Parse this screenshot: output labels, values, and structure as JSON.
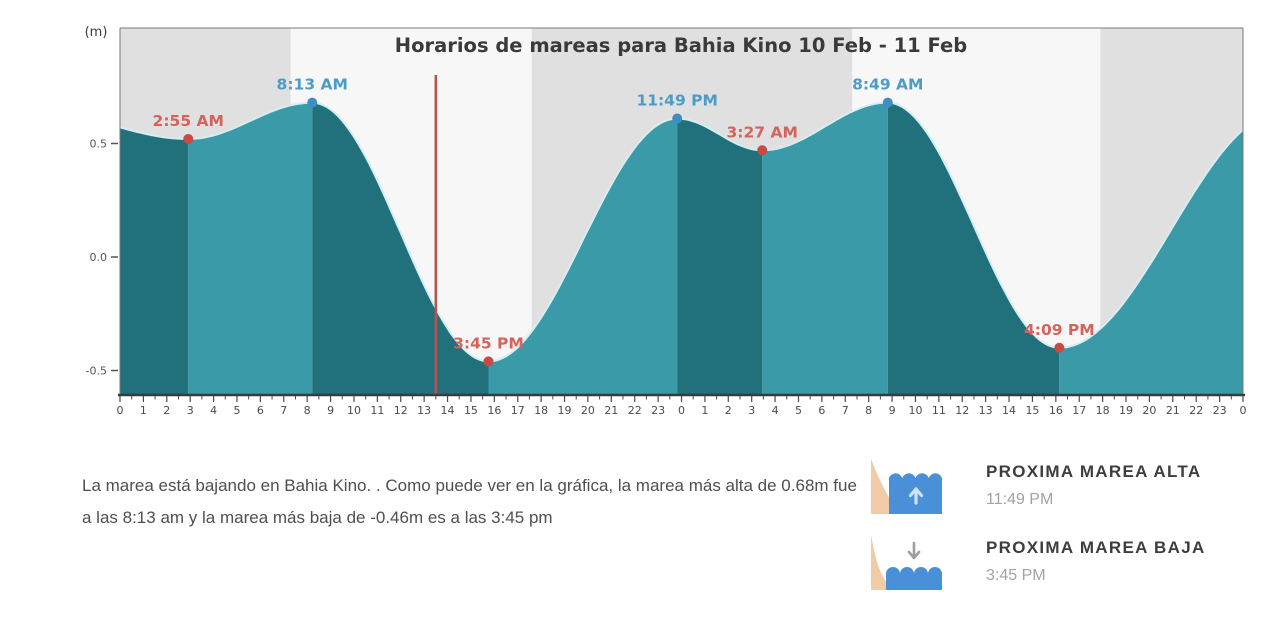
{
  "chart_data": {
    "type": "area",
    "title": "Horarios de mareas para Bahia Kino 10 Feb - 11 Feb",
    "unit_label": "(m)",
    "xlabel": "",
    "ylabel": "(m)",
    "ylim": [
      -0.6,
      1.0
    ],
    "x_hours_span": 48,
    "grid": false,
    "legend_position": "none",
    "y_ticks": [
      {
        "label": "0.5",
        "value": 0.5
      },
      {
        "label": "0.0",
        "value": 0.0
      },
      {
        "label": "-0.5",
        "value": -0.5
      }
    ],
    "x_tick_labels": [
      "0",
      "1",
      "2",
      "3",
      "4",
      "5",
      "6",
      "7",
      "8",
      "9",
      "10",
      "11",
      "12",
      "13",
      "14",
      "15",
      "16",
      "17",
      "18",
      "19",
      "20",
      "21",
      "22",
      "23",
      "0",
      "1",
      "2",
      "3",
      "4",
      "5",
      "6",
      "7",
      "8",
      "9",
      "10",
      "11",
      "12",
      "13",
      "14",
      "15",
      "16",
      "17",
      "18",
      "19",
      "20",
      "21",
      "22",
      "23",
      "0"
    ],
    "extremes": [
      {
        "time": "2:55 AM",
        "hour": 2.917,
        "height_m": 0.52,
        "type": "low"
      },
      {
        "time": "8:13 AM",
        "hour": 8.217,
        "height_m": 0.68,
        "type": "high"
      },
      {
        "time": "3:45 PM",
        "hour": 15.75,
        "height_m": -0.46,
        "type": "low"
      },
      {
        "time": "11:49 PM",
        "hour": 23.817,
        "height_m": 0.61,
        "type": "high"
      },
      {
        "time": "3:27 AM",
        "hour": 27.45,
        "height_m": 0.47,
        "type": "low"
      },
      {
        "time": "8:49 AM",
        "hour": 32.817,
        "height_m": 0.68,
        "type": "high"
      },
      {
        "time": "4:09 PM",
        "hour": 40.15,
        "height_m": -0.4,
        "type": "low"
      }
    ],
    "curve_padding": {
      "before": {
        "hour": -3.2,
        "height_m": 0.63
      },
      "after": {
        "hour": 49.7,
        "height_m": 0.64
      }
    },
    "current_time_marker_hour": 13.5,
    "day_night_bands": [
      {
        "from_hour": 0,
        "to_hour": 7.3,
        "kind": "night"
      },
      {
        "from_hour": 7.3,
        "to_hour": 17.6,
        "kind": "day"
      },
      {
        "from_hour": 17.6,
        "to_hour": 31.3,
        "kind": "night"
      },
      {
        "from_hour": 31.3,
        "to_hour": 41.9,
        "kind": "day"
      },
      {
        "from_hour": 41.9,
        "to_hour": 48,
        "kind": "night"
      }
    ],
    "colors": {
      "falling_fill": "#20717c",
      "rising_fill": "#3b9aa8",
      "curve_edge": "#d6edf1",
      "night_band": "#e0e0e0",
      "day_band": "#f7f7f7",
      "high_marker": "#3e8ec4",
      "low_marker": "#c94a45",
      "high_label": "#4d9cc7",
      "low_label": "#d4635c",
      "time_marker_line": "#b5544e",
      "axis_text": "#4a4a4a",
      "axis_line": "#3a3a3a",
      "border_line": "#7a7a7a",
      "title_text": "#3a3a3a"
    }
  },
  "summary_text": "La marea está bajando en Bahia Kino. . Como puede ver en la gráfica, la marea más alta de 0.68m fue a las 8:13 am y la marea más baja de -0.46m es a las 3:45 pm",
  "next_tides": [
    {
      "label": "PROXIMA MAREA ALTA",
      "time": "11:49 PM",
      "icon": "tide-high-icon"
    },
    {
      "label": "PROXIMA MAREA BAJA",
      "time": "3:45 PM",
      "icon": "tide-low-icon"
    }
  ],
  "icon_colors": {
    "cliff": "#f0cba6",
    "water": "#4a90d8",
    "up_arrow": "#cfe4f5",
    "down_arrow": "#9e9e9e"
  }
}
